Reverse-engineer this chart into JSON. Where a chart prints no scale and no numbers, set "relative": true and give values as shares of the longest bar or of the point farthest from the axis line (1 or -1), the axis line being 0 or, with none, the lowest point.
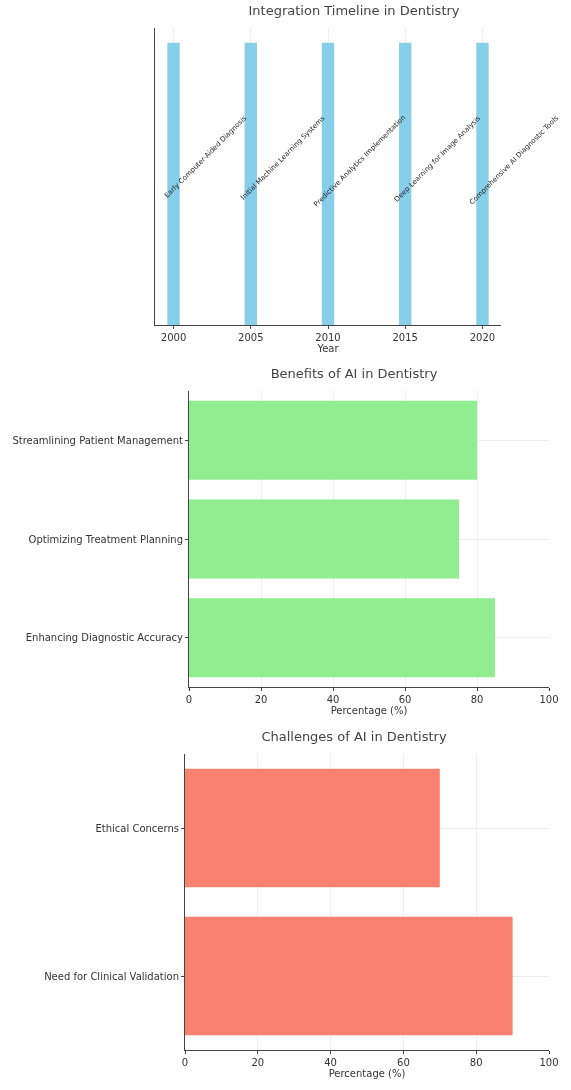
{
  "chart_data": [
    {
      "type": "bar",
      "title": "Integration Timeline in Dentistry",
      "xlabel": "Year",
      "x": [
        2000,
        2005,
        2010,
        2015,
        2020
      ],
      "values": [
        1,
        1,
        1,
        1,
        1
      ],
      "color": "#87ceeb",
      "relative": true,
      "xlim": [
        1998.8,
        2021.2
      ],
      "xticks": [
        2000,
        2005,
        2010,
        2015,
        2020
      ],
      "grid": "x",
      "annotations": [
        "Early Computer-Aided Diagnosis",
        "Initial Machine Learning Systems",
        "Predictive Analytics Implementation",
        "Deep Learning for Image Analysis",
        "Comprehensive AI Diagnostic Tools"
      ]
    },
    {
      "type": "bar",
      "orientation": "horizontal",
      "title": "Benefits of AI in Dentistry",
      "xlabel": "Percentage (%)",
      "categories": [
        "Streamlining Patient Management",
        "Optimizing Treatment Planning",
        "Enhancing Diagnostic Accuracy"
      ],
      "values": [
        80,
        75,
        85
      ],
      "color": "#90ee90",
      "xlim": [
        0,
        100
      ],
      "xticks": [
        0,
        20,
        40,
        60,
        80,
        100
      ],
      "grid": true
    },
    {
      "type": "bar",
      "orientation": "horizontal",
      "title": "Challenges of AI in Dentistry",
      "xlabel": "Percentage (%)",
      "categories": [
        "Ethical Concerns",
        "Need for Clinical Validation"
      ],
      "values": [
        70,
        90
      ],
      "color": "#fa8072",
      "xlim": [
        0,
        100
      ],
      "xticks": [
        0,
        20,
        40,
        60,
        80,
        100
      ],
      "grid": true
    }
  ]
}
